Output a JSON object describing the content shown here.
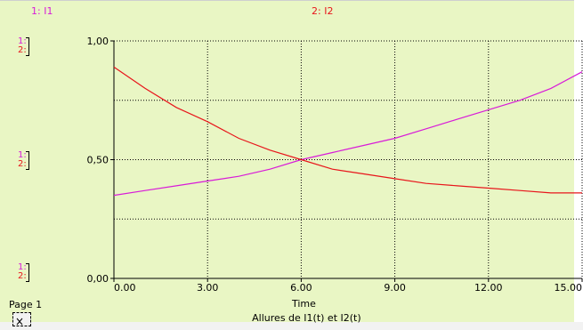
{
  "legend": {
    "series1": "1: I1",
    "series2": "2: I2"
  },
  "scale_markers": {
    "marker1": "1:",
    "marker2": "2:"
  },
  "page_label": "Page 1",
  "colors": {
    "series1": "#d81bd8",
    "series2": "#e8151b",
    "background": "#e9f6c4"
  },
  "chart_data": {
    "type": "line",
    "title": "Allures de I1(t) et I2(t)",
    "xlabel": "Time",
    "ylabel": "",
    "xlim": [
      0,
      15
    ],
    "ylim": [
      0,
      1
    ],
    "grid": true,
    "grid_style": "dotted",
    "x_ticks": [
      {
        "v": 0,
        "label": "0.00"
      },
      {
        "v": 3,
        "label": "3.00"
      },
      {
        "v": 6,
        "label": "6.00"
      },
      {
        "v": 9,
        "label": "9.00"
      },
      {
        "v": 12,
        "label": "12.00"
      },
      {
        "v": 15,
        "label": "15.00"
      }
    ],
    "y_ticks": [
      {
        "v": 0,
        "label": "0,00"
      },
      {
        "v": 0.5,
        "label": "0,50"
      },
      {
        "v": 1,
        "label": "1,00"
      }
    ],
    "y_gridlines": [
      0.25,
      0.5,
      0.75,
      1.0
    ],
    "x": [
      0,
      1,
      2,
      3,
      4,
      5,
      6,
      7,
      8,
      9,
      10,
      11,
      12,
      13,
      14,
      15
    ],
    "series": [
      {
        "name": "I1",
        "color": "#d81bd8",
        "values": [
          0.35,
          0.37,
          0.39,
          0.41,
          0.43,
          0.46,
          0.5,
          0.53,
          0.56,
          0.59,
          0.63,
          0.67,
          0.71,
          0.75,
          0.8,
          0.87
        ]
      },
      {
        "name": "I2",
        "color": "#e8151b",
        "values": [
          0.89,
          0.8,
          0.72,
          0.66,
          0.59,
          0.54,
          0.5,
          0.46,
          0.44,
          0.42,
          0.4,
          0.39,
          0.38,
          0.37,
          0.36,
          0.36
        ]
      }
    ]
  }
}
